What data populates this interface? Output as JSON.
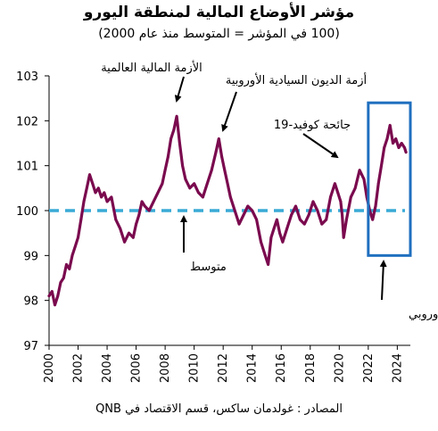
{
  "title": "مؤشر الأوضاع المالية لمنطقة اليورو",
  "subtitle": "(100 في المؤشر = المتوسط منذ عام 2000)",
  "source": "المصادر : غولدمان ساكس، قسم الاقتصاد في QNB",
  "colors": {
    "series": "#7a0a4e",
    "average": "#3aaad6",
    "highlight": "#1f6fbf"
  },
  "chart_data": {
    "type": "line",
    "title": "مؤشر الأوضاع المالية لمنطقة اليورو",
    "subtitle": "(100 في المؤشر = المتوسط منذ عام 2000)",
    "xlabel": "",
    "ylabel": "",
    "xlim": [
      2000,
      2024.9
    ],
    "ylim": [
      97,
      103
    ],
    "yticks": [
      97,
      98,
      99,
      100,
      101,
      102,
      103
    ],
    "xticks": [
      "2000",
      "2002",
      "2004",
      "2006",
      "2008",
      "2010",
      "2012",
      "2014",
      "2016",
      "2018",
      "2020",
      "2022",
      "2024"
    ],
    "grid": false,
    "average_line": {
      "value": 100,
      "label": "متوسط"
    },
    "series": [
      {
        "x": [
          2000.0,
          2000.2,
          2000.4,
          2000.6,
          2000.8,
          2001.0,
          2001.2,
          2001.4,
          2001.6,
          2001.8,
          2002.0,
          2002.2,
          2002.4,
          2002.6,
          2002.8,
          2003.0,
          2003.2,
          2003.4,
          2003.6,
          2003.8,
          2004.0,
          2004.3,
          2004.6,
          2004.9,
          2005.2,
          2005.5,
          2005.8,
          2006.0,
          2006.2,
          2006.4,
          2006.6,
          2006.9,
          2007.2,
          2007.5,
          2007.8,
          2008.0,
          2008.2,
          2008.4,
          2008.6,
          2008.8,
          2009.0,
          2009.2,
          2009.4,
          2009.7,
          2010.0,
          2010.3,
          2010.6,
          2010.9,
          2011.2,
          2011.5,
          2011.7,
          2011.9,
          2012.1,
          2012.3,
          2012.5,
          2012.8,
          2013.1,
          2013.4,
          2013.7,
          2014.0,
          2014.3,
          2014.6,
          2014.9,
          2015.1,
          2015.3,
          2015.5,
          2015.7,
          2015.9,
          2016.1,
          2016.4,
          2016.7,
          2017.0,
          2017.3,
          2017.6,
          2017.9,
          2018.2,
          2018.5,
          2018.8,
          2019.1,
          2019.4,
          2019.7,
          2019.9,
          2020.1,
          2020.2,
          2020.3,
          2020.5,
          2020.8,
          2021.1,
          2021.4,
          2021.7,
          2021.9,
          2022.1,
          2022.3,
          2022.5,
          2022.7,
          2022.9,
          2023.1,
          2023.3,
          2023.5,
          2023.7,
          2023.9,
          2024.1,
          2024.3,
          2024.5,
          2024.6
        ],
        "values": [
          98.1,
          98.2,
          97.9,
          98.1,
          98.4,
          98.5,
          98.8,
          98.7,
          99.0,
          99.2,
          99.4,
          99.8,
          100.2,
          100.5,
          100.8,
          100.6,
          100.4,
          100.5,
          100.3,
          100.4,
          100.2,
          100.3,
          99.8,
          99.6,
          99.3,
          99.5,
          99.4,
          99.7,
          99.9,
          100.2,
          100.1,
          100.0,
          100.2,
          100.4,
          100.6,
          100.9,
          101.2,
          101.6,
          101.8,
          102.1,
          101.5,
          101.0,
          100.7,
          100.5,
          100.6,
          100.4,
          100.3,
          100.6,
          100.9,
          101.3,
          101.6,
          101.2,
          100.9,
          100.6,
          100.3,
          100.0,
          99.7,
          99.9,
          100.1,
          100.0,
          99.8,
          99.3,
          99.0,
          98.8,
          99.4,
          99.6,
          99.8,
          99.5,
          99.3,
          99.6,
          99.9,
          100.1,
          99.8,
          99.7,
          99.9,
          100.2,
          100.0,
          99.7,
          99.8,
          100.3,
          100.6,
          100.4,
          100.2,
          99.9,
          99.4,
          99.8,
          100.3,
          100.5,
          100.9,
          100.7,
          100.3,
          100.0,
          99.8,
          100.1,
          100.6,
          101.0,
          101.4,
          101.6,
          101.9,
          101.5,
          101.6,
          101.4,
          101.5,
          101.4,
          101.3
        ]
      }
    ],
    "annotations": [
      {
        "text": "الأزمة المالية العالمية",
        "x": 2008.8,
        "y": 102.15
      },
      {
        "text": "أزمة الديون السيادية الأوروبية",
        "x": 2011.7,
        "y": 101.75
      },
      {
        "text": "جائحة كوفيد-19",
        "x": 2020.2,
        "y": 101.25
      },
      {
        "text": "متوسط",
        "x": 2008.5,
        "y": 100.0
      },
      {
        "text": "دورة التشديد النقدي من قِبل البنك المركزي الأوروبي",
        "x": 2022.9,
        "y": 98.95
      }
    ],
    "highlight_box": {
      "x_range": [
        2022.0,
        2024.9
      ],
      "y_range": [
        99.0,
        102.4
      ]
    }
  }
}
